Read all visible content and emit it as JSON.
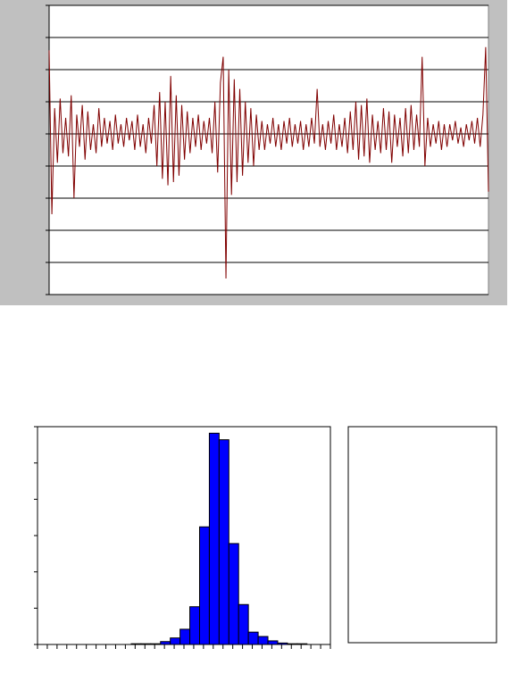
{
  "chart_data": [
    {
      "type": "line",
      "color": "#800000",
      "grid": true,
      "ylim": [
        -5,
        4
      ],
      "yticks": [
        -5,
        -4,
        -3,
        -2,
        -1,
        0,
        1,
        2,
        3,
        4
      ],
      "values": [
        2.6,
        -2.5,
        0.8,
        -0.9,
        1.1,
        -0.6,
        0.5,
        -0.7,
        1.2,
        -2.0,
        0.6,
        -0.4,
        0.9,
        -0.8,
        0.7,
        -0.5,
        0.3,
        -0.6,
        0.8,
        -0.4,
        0.5,
        -0.3,
        0.4,
        -0.5,
        0.6,
        -0.3,
        0.3,
        -0.4,
        0.5,
        -0.2,
        0.4,
        -0.5,
        0.6,
        -0.4,
        0.3,
        -0.6,
        0.5,
        -0.3,
        0.9,
        -1.0,
        1.3,
        -1.4,
        1.0,
        -1.6,
        1.8,
        -1.5,
        1.2,
        -1.3,
        0.9,
        -0.8,
        0.7,
        -0.6,
        0.5,
        -0.4,
        0.6,
        -0.5,
        0.4,
        -0.3,
        0.5,
        -0.6,
        1.0,
        -1.2,
        1.6,
        2.4,
        -4.5,
        2.0,
        -1.9,
        1.7,
        -1.5,
        1.4,
        -1.3,
        1.0,
        -0.9,
        0.8,
        -1.0,
        0.6,
        -0.5,
        0.4,
        -0.5,
        0.3,
        -0.3,
        0.5,
        -0.4,
        0.3,
        -0.5,
        0.4,
        -0.3,
        0.5,
        -0.4,
        0.3,
        -0.3,
        0.4,
        -0.5,
        0.3,
        -0.4,
        0.5,
        -0.3,
        1.4,
        -0.4,
        0.3,
        -0.5,
        0.4,
        -0.3,
        0.6,
        -0.5,
        0.3,
        -0.4,
        0.5,
        -0.6,
        0.7,
        -0.5,
        1.0,
        -0.8,
        0.9,
        -0.7,
        1.1,
        -0.9,
        0.6,
        -0.5,
        0.4,
        -0.6,
        0.8,
        -0.5,
        0.7,
        -0.9,
        0.6,
        -0.4,
        0.5,
        -0.7,
        0.8,
        -0.6,
        0.9,
        -0.5,
        0.6,
        -0.4,
        2.4,
        -1.0,
        0.5,
        -0.4,
        0.3,
        -0.3,
        0.4,
        -0.5,
        0.3,
        -0.4,
        0.3,
        -0.2,
        0.4,
        -0.3,
        0.2,
        -0.4,
        0.3,
        -0.2,
        0.4,
        -0.3,
        0.5,
        -0.4,
        0.6,
        2.7,
        -1.8
      ]
    },
    {
      "type": "histogram",
      "color": "#0000ff",
      "xlim": [
        0,
        30
      ],
      "ylim": [
        0,
        300
      ],
      "yticks": [
        0,
        50,
        100,
        150,
        200,
        250,
        300
      ],
      "xticks": [
        0,
        1,
        2,
        3,
        4,
        5,
        6,
        7,
        8,
        9,
        10,
        11,
        12,
        13,
        14,
        15,
        16,
        17,
        18,
        19,
        20,
        21,
        22,
        23,
        24,
        25,
        26,
        27,
        28,
        29,
        30
      ],
      "bins": [
        9.6,
        10.6,
        11.6,
        12.6,
        13.6,
        14.6,
        15.6,
        16.6,
        17.6,
        18.6,
        19.6,
        20.6,
        21.6,
        22.6,
        23.6,
        24.6,
        25.6,
        26.6,
        27.6
      ],
      "values": [
        1,
        1,
        1,
        4,
        9,
        21,
        52,
        162,
        291,
        282,
        139,
        55,
        17,
        11,
        5,
        2,
        1,
        1
      ]
    }
  ]
}
